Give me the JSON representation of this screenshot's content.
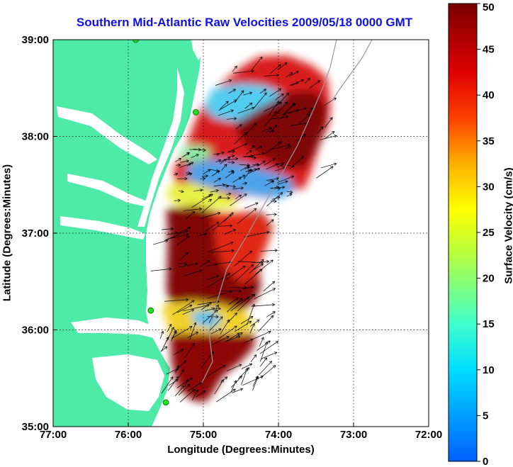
{
  "title": "Southern Mid-Atlantic Raw Velocities 2009/05/18 0000 GMT",
  "xlabel": "Longitude (Degrees:Minutes)",
  "ylabel": "Latitude (Degrees:Minutes)",
  "colorbar_label": "Surface Velocity (cm/s)",
  "x_ticks": [
    "77:00",
    "76:00",
    "75:00",
    "74:00",
    "73:00",
    "72:00"
  ],
  "y_ticks": [
    "39:00",
    "38:00",
    "37:00",
    "36:00",
    "35:00"
  ],
  "colorbar_ticks": [
    "0",
    "5",
    "10",
    "15",
    "20",
    "25",
    "30",
    "35",
    "40",
    "45",
    "50"
  ],
  "colors": {
    "land": "#4eeaa8",
    "title": "#1010e0",
    "station": "#22dd22"
  },
  "chart_data": {
    "type": "map",
    "lon_range": [
      -77,
      -72
    ],
    "lat_range": [
      35,
      39
    ],
    "colorbar_range": [
      0,
      50
    ],
    "stations": [
      {
        "lon": -75.9,
        "lat": 39.0
      },
      {
        "lon": -75.1,
        "lat": 38.25
      },
      {
        "lon": -75.7,
        "lat": 36.2
      },
      {
        "lon": -75.5,
        "lat": 35.25
      }
    ]
  }
}
